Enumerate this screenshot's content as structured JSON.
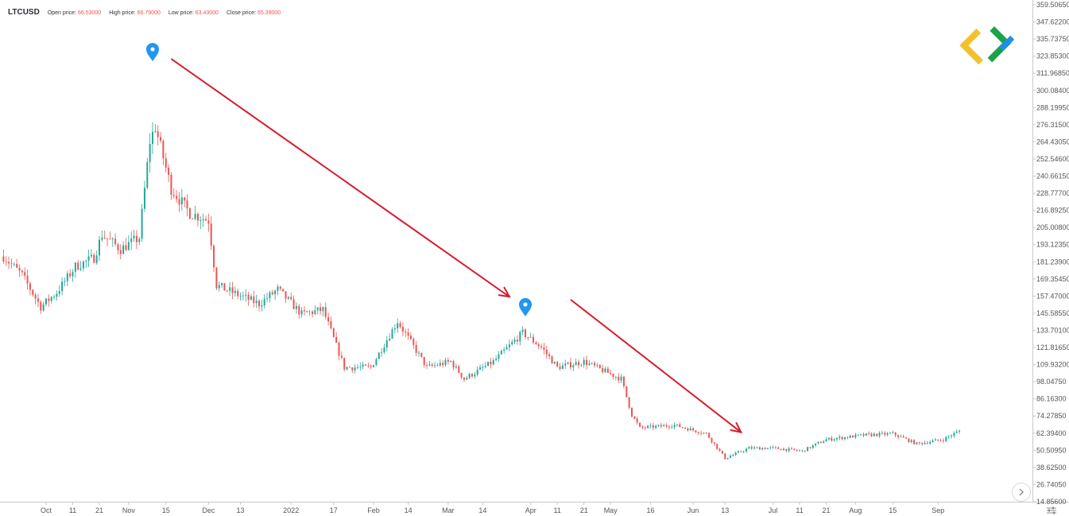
{
  "header": {
    "symbol": "LTCUSD",
    "open_label": "Open price:",
    "open_value": "66.53000",
    "high_label": "High price:",
    "high_value": "66.79000",
    "low_label": "Low price:",
    "low_value": "63.43000",
    "close_label": "Close price:",
    "close_value": "65.39000"
  },
  "colors": {
    "up": "#26a69a",
    "down": "#ef5350",
    "arrow": "#d81b2c",
    "marker": "#2196f3",
    "logo_green": "#1aa34a",
    "logo_blue": "#1e90e8",
    "logo_yellow": "#f2c12e"
  },
  "icons": {
    "logo": "brand-logo-icon",
    "marker": "location-pin-icon",
    "scroll": "chevron-right-icon",
    "settings": "settings-sliders-icon"
  },
  "chart_data": {
    "type": "candlestick",
    "title": "",
    "symbol": "LTCUSD",
    "y_ticks": [
      "359.50650",
      "347.62200",
      "335.73750",
      "323.85300",
      "311.96850",
      "300.08400",
      "288.19950",
      "276.31500",
      "264.43050",
      "252.54600",
      "240.66150",
      "228.77700",
      "216.89250",
      "205.00800",
      "193.12350",
      "181.23900",
      "169.35450",
      "157.47000",
      "145.58550",
      "133.70100",
      "121.81650",
      "109.93200",
      "98.04750",
      "86.16300",
      "74.27850",
      "62.39400",
      "50.50950",
      "38.62500",
      "26.74050",
      "14.85600"
    ],
    "ylim": [
      14.856,
      359.5065
    ],
    "x_ticks": [
      {
        "date": "2021-10-01",
        "label": "Oct"
      },
      {
        "date": "2021-10-11",
        "label": "11"
      },
      {
        "date": "2021-10-21",
        "label": "21"
      },
      {
        "date": "2021-11-01",
        "label": "Nov"
      },
      {
        "date": "2021-11-15",
        "label": "15"
      },
      {
        "date": "2021-12-01",
        "label": "Dec"
      },
      {
        "date": "2021-12-13",
        "label": "13"
      },
      {
        "date": "2022-01-01",
        "label": "2022"
      },
      {
        "date": "2022-01-17",
        "label": "17"
      },
      {
        "date": "2022-02-01",
        "label": "Feb"
      },
      {
        "date": "2022-02-14",
        "label": "14"
      },
      {
        "date": "2022-03-01",
        "label": "Mar"
      },
      {
        "date": "2022-03-14",
        "label": "14"
      },
      {
        "date": "2022-04-01",
        "label": "Apr"
      },
      {
        "date": "2022-04-11",
        "label": "11"
      },
      {
        "date": "2022-04-21",
        "label": "21"
      },
      {
        "date": "2022-05-01",
        "label": "May"
      },
      {
        "date": "2022-05-16",
        "label": "16"
      },
      {
        "date": "2022-06-01",
        "label": "Jun"
      },
      {
        "date": "2022-06-13",
        "label": "13"
      },
      {
        "date": "2022-07-01",
        "label": "Jul"
      },
      {
        "date": "2022-07-11",
        "label": "11"
      },
      {
        "date": "2022-07-21",
        "label": "21"
      },
      {
        "date": "2022-08-01",
        "label": "Aug"
      },
      {
        "date": "2022-08-15",
        "label": "15"
      },
      {
        "date": "2022-09-01",
        "label": "Sep"
      }
    ],
    "approx_close_path": [
      {
        "date": "2021-09-15",
        "close": 185
      },
      {
        "date": "2021-09-22",
        "close": 172
      },
      {
        "date": "2021-09-29",
        "close": 150
      },
      {
        "date": "2021-10-05",
        "close": 160
      },
      {
        "date": "2021-10-12",
        "close": 178
      },
      {
        "date": "2021-10-19",
        "close": 184
      },
      {
        "date": "2021-10-22",
        "close": 200
      },
      {
        "date": "2021-10-29",
        "close": 190
      },
      {
        "date": "2021-11-05",
        "close": 198
      },
      {
        "date": "2021-11-09",
        "close": 265
      },
      {
        "date": "2021-11-11",
        "close": 275
      },
      {
        "date": "2021-11-17",
        "close": 232
      },
      {
        "date": "2021-11-24",
        "close": 215
      },
      {
        "date": "2021-12-01",
        "close": 210
      },
      {
        "date": "2021-12-04",
        "close": 165
      },
      {
        "date": "2021-12-10",
        "close": 160
      },
      {
        "date": "2021-12-20",
        "close": 152
      },
      {
        "date": "2021-12-27",
        "close": 162
      },
      {
        "date": "2022-01-05",
        "close": 145
      },
      {
        "date": "2022-01-13",
        "close": 148
      },
      {
        "date": "2022-01-21",
        "close": 108
      },
      {
        "date": "2022-01-31",
        "close": 108
      },
      {
        "date": "2022-02-10",
        "close": 140
      },
      {
        "date": "2022-02-21",
        "close": 108
      },
      {
        "date": "2022-03-02",
        "close": 112
      },
      {
        "date": "2022-03-07",
        "close": 100
      },
      {
        "date": "2022-03-18",
        "close": 112
      },
      {
        "date": "2022-03-29",
        "close": 132
      },
      {
        "date": "2022-04-05",
        "close": 122
      },
      {
        "date": "2022-04-11",
        "close": 108
      },
      {
        "date": "2022-04-21",
        "close": 112
      },
      {
        "date": "2022-05-05",
        "close": 100
      },
      {
        "date": "2022-05-09",
        "close": 75
      },
      {
        "date": "2022-05-12",
        "close": 66
      },
      {
        "date": "2022-05-25",
        "close": 68
      },
      {
        "date": "2022-06-06",
        "close": 62
      },
      {
        "date": "2022-06-13",
        "close": 45
      },
      {
        "date": "2022-06-22",
        "close": 52
      },
      {
        "date": "2022-07-01",
        "close": 52
      },
      {
        "date": "2022-07-12",
        "close": 50
      },
      {
        "date": "2022-07-21",
        "close": 58
      },
      {
        "date": "2022-08-04",
        "close": 61
      },
      {
        "date": "2022-08-15",
        "close": 62
      },
      {
        "date": "2022-08-24",
        "close": 55
      },
      {
        "date": "2022-09-03",
        "close": 58
      },
      {
        "date": "2022-09-09",
        "close": 64
      }
    ],
    "annotations": [
      {
        "type": "marker",
        "date": "2021-11-10",
        "price": 327
      },
      {
        "type": "marker",
        "date": "2022-03-30",
        "price": 150
      },
      {
        "type": "arrow",
        "from": {
          "date": "2021-11-17",
          "price": 322
        },
        "to": {
          "date": "2022-03-24",
          "price": 157
        }
      },
      {
        "type": "arrow",
        "from": {
          "date": "2022-04-16",
          "price": 155
        },
        "to": {
          "date": "2022-06-19",
          "price": 63
        }
      }
    ],
    "grid": false,
    "legend": "none"
  }
}
